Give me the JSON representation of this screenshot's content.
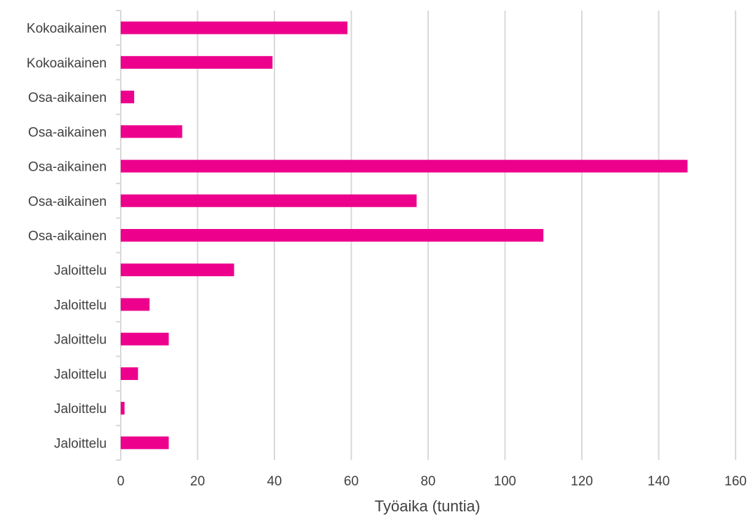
{
  "chart_data": {
    "type": "bar",
    "orientation": "horizontal",
    "categories": [
      "Kokoaikainen",
      "Kokoaikainen",
      "Osa-aikainen",
      "Osa-aikainen",
      "Osa-aikainen",
      "Osa-aikainen",
      "Osa-aikainen",
      "Jaloittelu",
      "Jaloittelu",
      "Jaloittelu",
      "Jaloittelu",
      "Jaloittelu",
      "Jaloittelu"
    ],
    "values": [
      59,
      39.5,
      3.5,
      16,
      147.5,
      77,
      110,
      29.5,
      7.5,
      12.5,
      4.5,
      1,
      12.5
    ],
    "xlabel": "Työaika (tuntia)",
    "ylabel": "",
    "xlim": [
      0,
      160
    ],
    "xticks": [
      0,
      20,
      40,
      60,
      80,
      100,
      120,
      140,
      160
    ],
    "grid": true,
    "bar_color": "#ec008c"
  }
}
